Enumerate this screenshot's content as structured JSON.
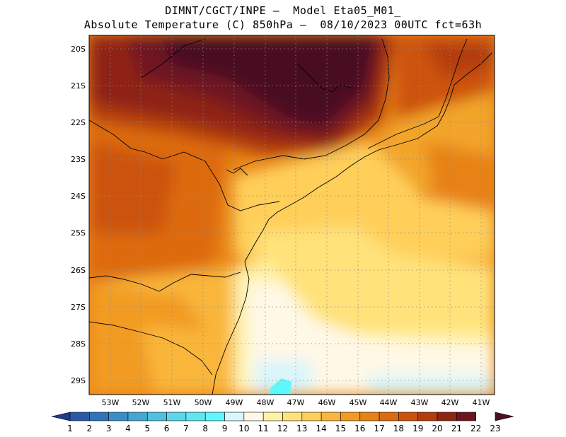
{
  "title": {
    "line1": "DIMNT/CGCT/INPE –  Model Eta05_M01_",
    "line2": "Absolute Temperature (C) 850hPa –  08/10/2023 00UTC fct=63h"
  },
  "map": {
    "lat_labels": [
      "20S",
      "21S",
      "22S",
      "23S",
      "24S",
      "25S",
      "26S",
      "27S",
      "28S",
      "29S"
    ],
    "lon_labels": [
      "53W",
      "52W",
      "51W",
      "50W",
      "49W",
      "48W",
      "47W",
      "46W",
      "45W",
      "44W",
      "43W",
      "42W",
      "41W"
    ],
    "grid": "dotted"
  },
  "colorbar": {
    "labels": [
      "1",
      "2",
      "3",
      "4",
      "5",
      "6",
      "7",
      "8",
      "9",
      "10",
      "11",
      "12",
      "13",
      "14",
      "15",
      "16",
      "17",
      "18",
      "19",
      "20",
      "21",
      "22",
      "23"
    ],
    "colors": [
      "#1e3c8c",
      "#2a5aa6",
      "#2f74b8",
      "#3a8ec6",
      "#44a6d4",
      "#4fc0e0",
      "#5cd6ea",
      "#5fe6f0",
      "#5ef7fb",
      "#d8f6fc",
      "#fff8e6",
      "#fff2a8",
      "#ffe27a",
      "#ffcf5a",
      "#f9b63a",
      "#f29b20",
      "#e88214",
      "#dd6a0e",
      "#cc520c",
      "#b33c0c",
      "#8e2412",
      "#6e1420",
      "#4a1020"
    ]
  }
}
